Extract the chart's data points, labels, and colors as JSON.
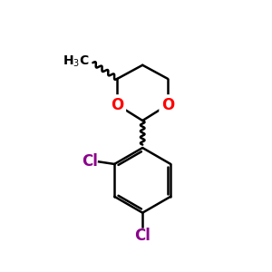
{
  "background_color": "#ffffff",
  "bond_color": "#000000",
  "oxygen_color": "#ff0000",
  "chlorine_color": "#8b008b",
  "text_color": "#000000",
  "figsize": [
    3.0,
    3.0
  ],
  "dpi": 100,
  "xlim": [
    0,
    10
  ],
  "ylim": [
    0,
    10
  ]
}
